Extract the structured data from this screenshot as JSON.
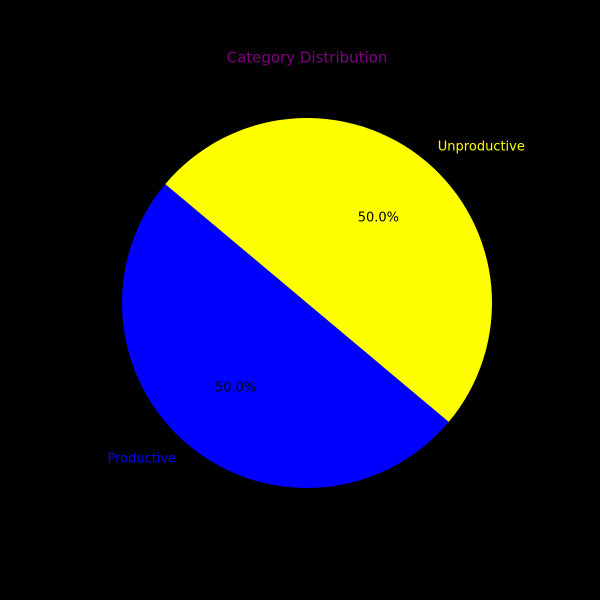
{
  "chart_data": {
    "type": "pie",
    "title": "Category Distribution",
    "labels": [
      "Productive",
      "Unproductive"
    ],
    "values": [
      50.0,
      50.0
    ],
    "percent_labels": [
      "50.0%",
      "50.0%"
    ],
    "colors": [
      "#0000ff",
      "#ffff00"
    ],
    "start_angle_deg": 140,
    "direction": "counterclockwise"
  },
  "colors": {
    "background": "#000000",
    "title": "#800080",
    "percent_text": "#000000"
  }
}
